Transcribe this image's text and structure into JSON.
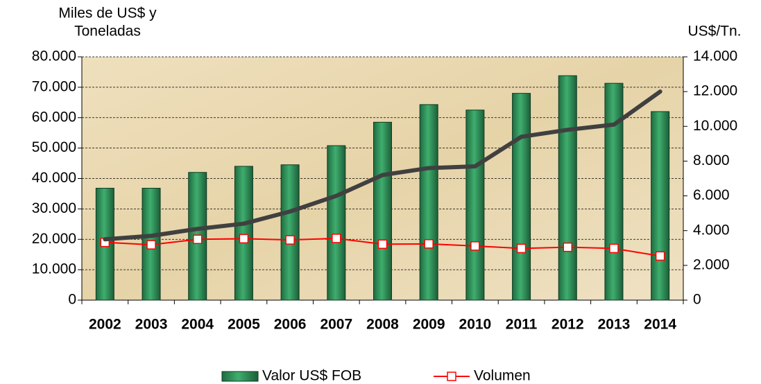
{
  "chart_data": {
    "type": "bar_line",
    "ylabel": [
      "Miles de US$ y",
      "Toneladas"
    ],
    "y2label": "US$/Tn.",
    "categories": [
      "2002",
      "2003",
      "2004",
      "2005",
      "2006",
      "2007",
      "2008",
      "2009",
      "2010",
      "2011",
      "2012",
      "2013",
      "2014"
    ],
    "series": [
      {
        "name": "Valor US$ FOB",
        "type": "bar",
        "color": "#2e8b57",
        "values": [
          36800,
          36800,
          42000,
          44000,
          44500,
          50800,
          58500,
          64300,
          62500,
          68000,
          73800,
          71300,
          62000
        ]
      },
      {
        "name": "Volumen",
        "type": "line",
        "color": "#ff0000",
        "values": [
          19000,
          18200,
          20000,
          20200,
          19800,
          20300,
          18400,
          18500,
          17800,
          17000,
          17400,
          17000,
          14500
        ]
      },
      {
        "type": "line",
        "axis": "y2",
        "color": "#404040",
        "values": [
          3500,
          3700,
          4100,
          4400,
          5100,
          6000,
          7200,
          7600,
          7700,
          9400,
          9800,
          10100,
          12000
        ]
      }
    ],
    "ylim": [
      0,
      80000
    ],
    "yticks": [
      0,
      {
        "value": 10000,
        "label": "10.000"
      },
      {
        "value": 20000,
        "label": "20.000"
      },
      {
        "value": 30000,
        "label": "30.000"
      },
      {
        "value": 40000,
        "label": "40.000"
      },
      {
        "value": 50000,
        "label": "50.000"
      },
      {
        "value": 60000,
        "label": "60.000"
      },
      {
        "value": 70000,
        "label": "70.000"
      },
      {
        "value": 80000,
        "label": "80.000"
      }
    ],
    "y2lim": [
      0,
      14000
    ],
    "y2ticks": [
      0,
      {
        "value": 2000,
        "label": "2.000"
      },
      {
        "value": 4000,
        "label": "4.000"
      },
      {
        "value": 6000,
        "label": "6.000"
      },
      {
        "value": 8000,
        "label": "8.000"
      },
      {
        "value": 10000,
        "label": "10.000"
      },
      {
        "value": 12000,
        "label": "12.000"
      },
      {
        "value": 14000,
        "label": "14.000"
      }
    ],
    "grid": true
  }
}
